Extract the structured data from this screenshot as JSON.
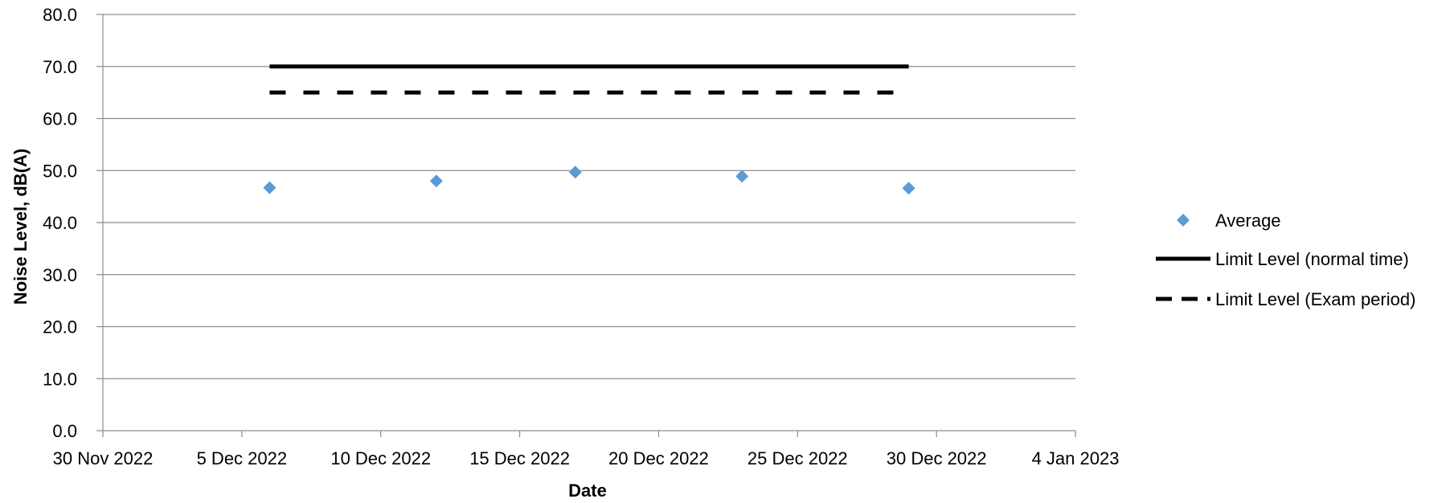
{
  "chart_data": {
    "type": "scatter",
    "xlabel": "Date",
    "ylabel": "Noise Level, dB(A)",
    "ylim": [
      0,
      80
    ],
    "xlim": [
      "2022-11-30",
      "2023-01-04"
    ],
    "y_ticks": [
      0,
      10,
      20,
      30,
      40,
      50,
      60,
      70,
      80
    ],
    "y_tick_labels": [
      "0.0",
      "10.0",
      "20.0",
      "30.0",
      "40.0",
      "50.0",
      "60.0",
      "70.0",
      "80.0"
    ],
    "x_ticks": [
      "2022-11-30",
      "2022-12-05",
      "2022-12-10",
      "2022-12-15",
      "2022-12-20",
      "2022-12-25",
      "2022-12-30",
      "2023-01-04"
    ],
    "x_tick_labels": [
      "30 Nov 2022",
      "5 Dec 2022",
      "10 Dec 2022",
      "15 Dec 2022",
      "20 Dec 2022",
      "25 Dec 2022",
      "30 Dec 2022",
      "4 Jan 2023"
    ],
    "grid": "horizontal",
    "legend_position": "right",
    "series": [
      {
        "name": "Average",
        "style": "marker",
        "marker": "diamond",
        "color": "#5B9BD5",
        "x": [
          "2022-12-06",
          "2022-12-12",
          "2022-12-17",
          "2022-12-23",
          "2022-12-29"
        ],
        "y": [
          46.7,
          48.0,
          49.7,
          48.9,
          46.6
        ]
      },
      {
        "name": "Limit Level (normal time)",
        "style": "solid",
        "color": "#000000",
        "x": [
          "2022-12-06",
          "2022-12-29"
        ],
        "y": [
          70,
          70
        ]
      },
      {
        "name": "Limit Level (Exam period)",
        "style": "dashed",
        "color": "#000000",
        "x": [
          "2022-12-06",
          "2022-12-28 12:00"
        ],
        "y": [
          65,
          65
        ]
      }
    ]
  }
}
